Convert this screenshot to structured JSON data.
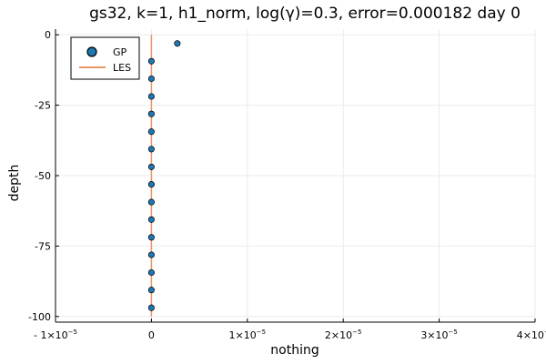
{
  "chart_data": {
    "type": "scatter",
    "title": "gs32, k=1, h1_norm, log(γ)=0.3, error=0.000182 day 0",
    "xlabel": "nothing",
    "ylabel": "depth",
    "xlim": [
      -1e-05,
      4e-05
    ],
    "ylim": [
      -102,
      2
    ],
    "x_ticks": [
      {
        "value": -1e-05,
        "mantissa": "- 1×10",
        "exp": "−5"
      },
      {
        "value": 0,
        "mantissa": "0",
        "exp": ""
      },
      {
        "value": 1e-05,
        "mantissa": "1×10",
        "exp": "−5"
      },
      {
        "value": 2e-05,
        "mantissa": "2×10",
        "exp": "−5"
      },
      {
        "value": 3e-05,
        "mantissa": "3×10",
        "exp": "−5"
      },
      {
        "value": 4e-05,
        "mantissa": "4×10",
        "exp": "−5"
      }
    ],
    "y_ticks": [
      {
        "value": 0,
        "label": "0"
      },
      {
        "value": -25,
        "label": "-25"
      },
      {
        "value": -50,
        "label": "-50"
      },
      {
        "value": -75,
        "label": "-75"
      },
      {
        "value": -100,
        "label": "-100"
      }
    ],
    "grid": true,
    "legend_position": "top-left",
    "series": [
      {
        "name": "GP",
        "kind": "scatter",
        "color": "#1f77b4",
        "points": [
          {
            "x": 2.7e-06,
            "y": -3.1
          },
          {
            "x": 0,
            "y": -9.4
          },
          {
            "x": 0,
            "y": -15.6
          },
          {
            "x": 0,
            "y": -21.9
          },
          {
            "x": 0,
            "y": -28.1
          },
          {
            "x": 0,
            "y": -34.4
          },
          {
            "x": 0,
            "y": -40.6
          },
          {
            "x": 0,
            "y": -46.9
          },
          {
            "x": 0,
            "y": -53.1
          },
          {
            "x": 0,
            "y": -59.4
          },
          {
            "x": 0,
            "y": -65.6
          },
          {
            "x": 0,
            "y": -71.9
          },
          {
            "x": 0,
            "y": -78.1
          },
          {
            "x": 0,
            "y": -84.4
          },
          {
            "x": 0,
            "y": -90.6
          },
          {
            "x": 0,
            "y": -96.9
          }
        ]
      },
      {
        "name": "LES",
        "kind": "line",
        "color": "#e8966a",
        "points": [
          {
            "x": 0,
            "y": 0
          },
          {
            "x": 0,
            "y": -100
          }
        ]
      }
    ]
  }
}
